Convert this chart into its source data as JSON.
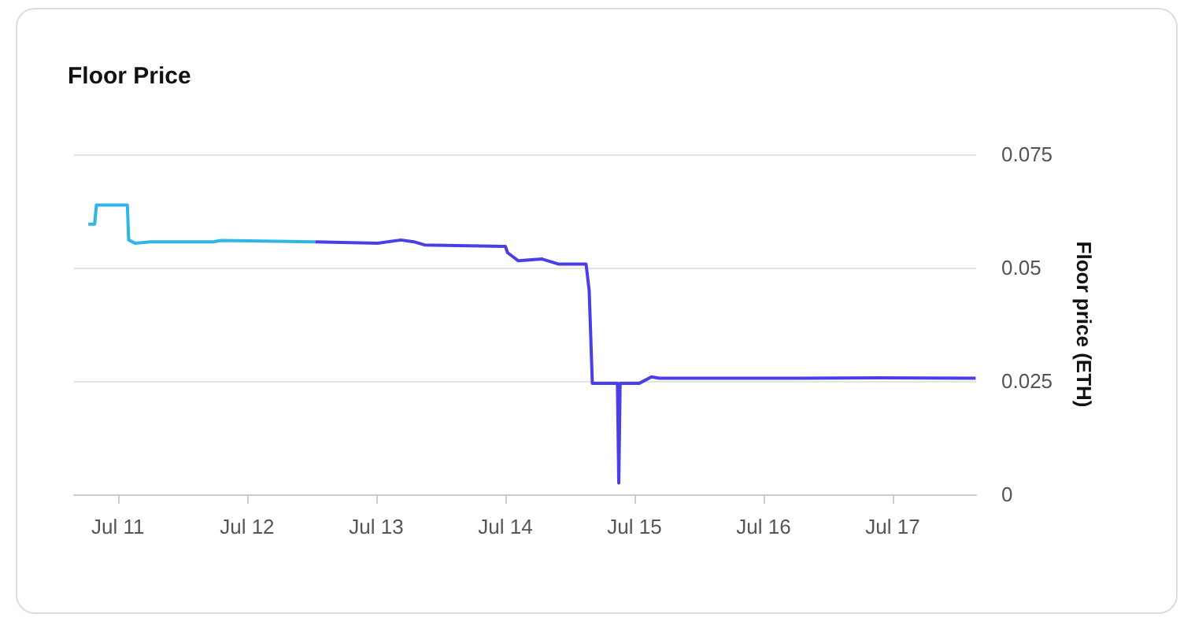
{
  "chart_data": {
    "type": "line",
    "title": "Floor Price",
    "ylabel": "Floor price (ETH)",
    "xlim": [
      "--07-10T15:50",
      "--07-17T15:30"
    ],
    "xticks": [
      {
        "value": "--07-11",
        "label": "Jul 11"
      },
      {
        "value": "--07-12",
        "label": "Jul 12"
      },
      {
        "value": "--07-13",
        "label": "Jul 13"
      },
      {
        "value": "--07-14",
        "label": "Jul 14"
      },
      {
        "value": "--07-15",
        "label": "Jul 15"
      },
      {
        "value": "--07-16",
        "label": "Jul 16"
      },
      {
        "value": "--07-17",
        "label": "Jul 17"
      }
    ],
    "ylim": [
      0,
      0.075
    ],
    "yticks": [
      0,
      0.025,
      0.05,
      0.075
    ],
    "grid": "y",
    "marker": "none",
    "line_style": "solid",
    "series": [
      {
        "color": "#2fb5e8",
        "x": [
          "--07-10T18:30",
          "--07-10T19:40",
          "--07-10T20:00",
          "--07-11T01:45",
          "--07-11T02:00",
          "--07-11T03:10",
          "--07-11T06:00",
          "--07-11T17:45",
          "--07-11T19:10",
          "--07-12T12:40"
        ],
        "values": [
          0.0596,
          0.0596,
          0.0638,
          0.0638,
          0.0561,
          0.0554,
          0.0557,
          0.0557,
          0.056,
          0.0557
        ]
      },
      {
        "color": "#4a3ee6",
        "x": [
          "--07-12T12:40",
          "--07-13T00:15",
          "--07-13T04:35",
          "--07-13T07:00",
          "--07-13T09:00",
          "--07-13T23:30",
          "--07-14T00:00",
          "--07-14T00:25",
          "--07-14T02:25",
          "--07-14T06:50",
          "--07-14T09:50",
          "--07-14T15:00",
          "--07-14T15:35",
          "--07-14T16:10",
          "--07-14T20:50",
          "--07-14T21:05",
          "--07-14T21:20",
          "--07-15T00:55",
          "--07-15T03:10",
          "--07-15T04:35",
          "--07-16T03:50",
          "--07-16T21:20",
          "--07-17T15:25"
        ],
        "values": [
          0.0557,
          0.0554,
          0.0561,
          0.0557,
          0.055,
          0.0547,
          0.0547,
          0.0533,
          0.0515,
          0.0519,
          0.0508,
          0.0508,
          0.0449,
          0.0245,
          0.0245,
          0.0025,
          0.0245,
          0.0245,
          0.0259,
          0.0256,
          0.0256,
          0.0257,
          0.0256
        ]
      }
    ]
  }
}
